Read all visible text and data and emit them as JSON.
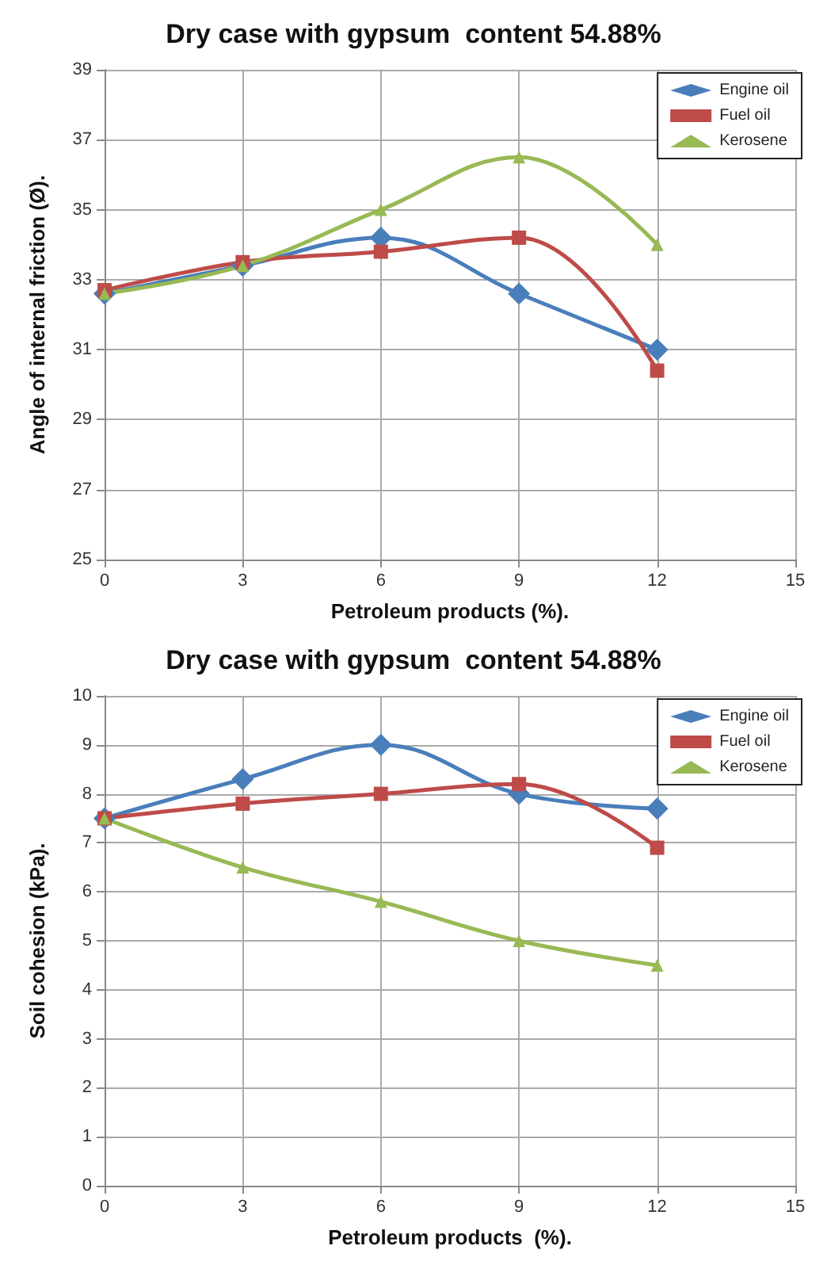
{
  "chart_data": [
    {
      "type": "line",
      "title": "Dry case with gypsum  content 54.88%",
      "xlabel": "Petroleum products (%).",
      "ylabel": "Angle of internal friction (Ø).",
      "x": [
        0,
        3,
        6,
        9,
        12
      ],
      "xlim": [
        0,
        15
      ],
      "xticks": [
        0,
        3,
        6,
        9,
        12,
        15
      ],
      "ylim": [
        25,
        39
      ],
      "yticks": [
        25,
        27,
        29,
        31,
        33,
        35,
        37,
        39
      ],
      "grid": true,
      "legend": "top right",
      "series": [
        {
          "name": "Engine oil",
          "color": "#4a7ebb",
          "marker": "diamond",
          "values": [
            32.6,
            33.4,
            34.2,
            32.6,
            31.0
          ]
        },
        {
          "name": "Fuel oil",
          "color": "#be4b48",
          "marker": "square",
          "values": [
            32.7,
            33.5,
            33.8,
            34.2,
            30.4
          ]
        },
        {
          "name": "Kerosene",
          "color": "#98b954",
          "marker": "triangle",
          "values": [
            32.6,
            33.4,
            35.0,
            36.5,
            34.0
          ]
        }
      ]
    },
    {
      "type": "line",
      "title": "Dry case with gypsum  content 54.88%",
      "xlabel": "Petroleum products  (%).",
      "ylabel": "Soil cohesion (kPa).",
      "x": [
        0,
        3,
        6,
        9,
        12
      ],
      "xlim": [
        0,
        15
      ],
      "xticks": [
        0,
        3,
        6,
        9,
        12,
        15
      ],
      "ylim": [
        0,
        10
      ],
      "yticks": [
        0,
        1,
        2,
        3,
        4,
        5,
        6,
        7,
        8,
        9,
        10
      ],
      "grid": true,
      "legend": "top right",
      "series": [
        {
          "name": "Engine oil",
          "color": "#4a7ebb",
          "marker": "diamond",
          "values": [
            7.5,
            8.3,
            9.0,
            8.0,
            7.7
          ]
        },
        {
          "name": "Fuel oil",
          "color": "#be4b48",
          "marker": "square",
          "values": [
            7.5,
            7.8,
            8.0,
            8.2,
            6.9
          ]
        },
        {
          "name": "Kerosene",
          "color": "#98b954",
          "marker": "triangle",
          "values": [
            7.5,
            6.5,
            5.8,
            5.0,
            4.5
          ]
        }
      ]
    }
  ]
}
